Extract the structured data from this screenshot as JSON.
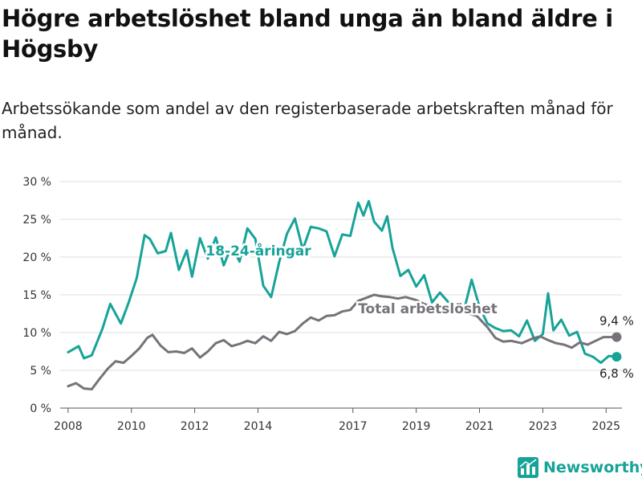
{
  "title": "Högre arbetslöshet bland unga än bland äldre i Högsby",
  "subtitle": "Arbetssökande som andel av den registerbaserade arbetskraften månad för månad.",
  "brand": {
    "name": "Newsworthy",
    "color": "#17a398"
  },
  "chart_data": {
    "type": "line",
    "title": "Högre arbetslöshet bland unga än bland äldre i Högsby",
    "subtitle": "Arbetssökande som andel av den registerbaserade arbetskraften månad för månad.",
    "xlabel": "",
    "ylabel": "",
    "ylim": [
      0,
      30
    ],
    "xlim": [
      "2007-10",
      "2025-07"
    ],
    "grid": true,
    "legend": "none (direct labels)",
    "y_ticks": [
      "0 %",
      "5 %",
      "10 %",
      "15 %",
      "20 %",
      "25 %",
      "30 %"
    ],
    "x_ticks": [
      "2008",
      "2010",
      "2012",
      "2014",
      "2017",
      "2019",
      "2021",
      "2023",
      "2025"
    ],
    "series": [
      {
        "name": "18-24-åringar",
        "color": "#17a398",
        "end_label": "6,8 %",
        "points": [
          [
            "2008-01",
            7.4
          ],
          [
            "2008-05",
            8.2
          ],
          [
            "2008-07",
            6.6
          ],
          [
            "2008-10",
            7.0
          ],
          [
            "2009-02",
            10.5
          ],
          [
            "2009-05",
            13.8
          ],
          [
            "2009-09",
            11.2
          ],
          [
            "2009-12",
            14.0
          ],
          [
            "2010-03",
            17.2
          ],
          [
            "2010-06",
            22.9
          ],
          [
            "2010-08",
            22.4
          ],
          [
            "2010-11",
            20.5
          ],
          [
            "2011-02",
            20.8
          ],
          [
            "2011-04",
            23.2
          ],
          [
            "2011-07",
            18.3
          ],
          [
            "2011-10",
            20.9
          ],
          [
            "2011-12",
            17.4
          ],
          [
            "2012-03",
            22.5
          ],
          [
            "2012-06",
            19.8
          ],
          [
            "2012-09",
            22.6
          ],
          [
            "2012-12",
            18.9
          ],
          [
            "2013-03",
            21.5
          ],
          [
            "2013-06",
            19.4
          ],
          [
            "2013-09",
            23.8
          ],
          [
            "2013-12",
            22.4
          ],
          [
            "2014-03",
            16.2
          ],
          [
            "2014-06",
            14.7
          ],
          [
            "2014-09",
            19.3
          ],
          [
            "2014-12",
            23.1
          ],
          [
            "2015-03",
            25.1
          ],
          [
            "2015-06",
            21.0
          ],
          [
            "2015-09",
            24.0
          ],
          [
            "2015-12",
            23.8
          ],
          [
            "2016-03",
            23.4
          ],
          [
            "2016-06",
            20.1
          ],
          [
            "2016-09",
            23.0
          ],
          [
            "2016-12",
            22.8
          ],
          [
            "2017-03",
            27.2
          ],
          [
            "2017-05",
            25.5
          ],
          [
            "2017-07",
            27.4
          ],
          [
            "2017-09",
            24.7
          ],
          [
            "2017-12",
            23.5
          ],
          [
            "2018-02",
            25.4
          ],
          [
            "2018-04",
            21.2
          ],
          [
            "2018-07",
            17.5
          ],
          [
            "2018-10",
            18.3
          ],
          [
            "2019-01",
            16.1
          ],
          [
            "2019-04",
            17.6
          ],
          [
            "2019-07",
            14.0
          ],
          [
            "2019-10",
            15.3
          ],
          [
            "2020-01",
            14.1
          ],
          [
            "2020-04",
            13.8
          ],
          [
            "2020-07",
            12.8
          ],
          [
            "2020-10",
            17.0
          ],
          [
            "2021-01",
            13.4
          ],
          [
            "2021-04",
            11.2
          ],
          [
            "2021-07",
            10.6
          ],
          [
            "2021-10",
            10.2
          ],
          [
            "2022-01",
            10.3
          ],
          [
            "2022-04",
            9.5
          ],
          [
            "2022-07",
            11.6
          ],
          [
            "2022-10",
            8.9
          ],
          [
            "2023-01",
            9.8
          ],
          [
            "2023-03",
            15.2
          ],
          [
            "2023-05",
            10.3
          ],
          [
            "2023-08",
            11.7
          ],
          [
            "2023-11",
            9.6
          ],
          [
            "2024-02",
            10.1
          ],
          [
            "2024-05",
            7.2
          ],
          [
            "2024-08",
            6.8
          ],
          [
            "2024-11",
            6.0
          ],
          [
            "2025-02",
            6.9
          ],
          [
            "2025-05",
            6.8
          ]
        ]
      },
      {
        "name": "Total arbetslöshet",
        "color": "#77727a",
        "end_label": "9,4 %",
        "points": [
          [
            "2008-01",
            2.9
          ],
          [
            "2008-04",
            3.3
          ],
          [
            "2008-07",
            2.6
          ],
          [
            "2008-10",
            2.5
          ],
          [
            "2009-01",
            3.9
          ],
          [
            "2009-04",
            5.2
          ],
          [
            "2009-07",
            6.2
          ],
          [
            "2009-10",
            6.0
          ],
          [
            "2010-01",
            6.9
          ],
          [
            "2010-04",
            7.9
          ],
          [
            "2010-07",
            9.3
          ],
          [
            "2010-09",
            9.7
          ],
          [
            "2010-12",
            8.3
          ],
          [
            "2011-03",
            7.4
          ],
          [
            "2011-06",
            7.5
          ],
          [
            "2011-09",
            7.3
          ],
          [
            "2011-12",
            7.9
          ],
          [
            "2012-03",
            6.7
          ],
          [
            "2012-06",
            7.5
          ],
          [
            "2012-09",
            8.6
          ],
          [
            "2012-12",
            9.0
          ],
          [
            "2013-03",
            8.2
          ],
          [
            "2013-06",
            8.5
          ],
          [
            "2013-09",
            8.9
          ],
          [
            "2013-12",
            8.6
          ],
          [
            "2014-03",
            9.5
          ],
          [
            "2014-06",
            8.9
          ],
          [
            "2014-09",
            10.1
          ],
          [
            "2014-12",
            9.8
          ],
          [
            "2015-03",
            10.2
          ],
          [
            "2015-06",
            11.2
          ],
          [
            "2015-09",
            12.0
          ],
          [
            "2015-12",
            11.6
          ],
          [
            "2016-03",
            12.2
          ],
          [
            "2016-06",
            12.3
          ],
          [
            "2016-09",
            12.8
          ],
          [
            "2016-12",
            13.0
          ],
          [
            "2017-03",
            14.2
          ],
          [
            "2017-06",
            14.6
          ],
          [
            "2017-09",
            15.0
          ],
          [
            "2017-12",
            14.8
          ],
          [
            "2018-03",
            14.7
          ],
          [
            "2018-06",
            14.5
          ],
          [
            "2018-09",
            14.7
          ],
          [
            "2019-01",
            14.3
          ],
          [
            "2019-04",
            13.8
          ],
          [
            "2019-08",
            13.2
          ],
          [
            "2019-12",
            12.6
          ],
          [
            "2020-04",
            12.9
          ],
          [
            "2020-08",
            12.6
          ],
          [
            "2020-12",
            12.2
          ],
          [
            "2021-04",
            10.7
          ],
          [
            "2021-07",
            9.3
          ],
          [
            "2021-10",
            8.8
          ],
          [
            "2022-01",
            8.9
          ],
          [
            "2022-05",
            8.6
          ],
          [
            "2022-09",
            9.2
          ],
          [
            "2022-12",
            9.5
          ],
          [
            "2023-03",
            9.0
          ],
          [
            "2023-06",
            8.6
          ],
          [
            "2023-09",
            8.4
          ],
          [
            "2023-12",
            8.0
          ],
          [
            "2024-03",
            8.7
          ],
          [
            "2024-06",
            8.4
          ],
          [
            "2024-09",
            8.9
          ],
          [
            "2024-12",
            9.4
          ],
          [
            "2025-03",
            9.4
          ],
          [
            "2025-05",
            9.4
          ]
        ]
      }
    ]
  }
}
